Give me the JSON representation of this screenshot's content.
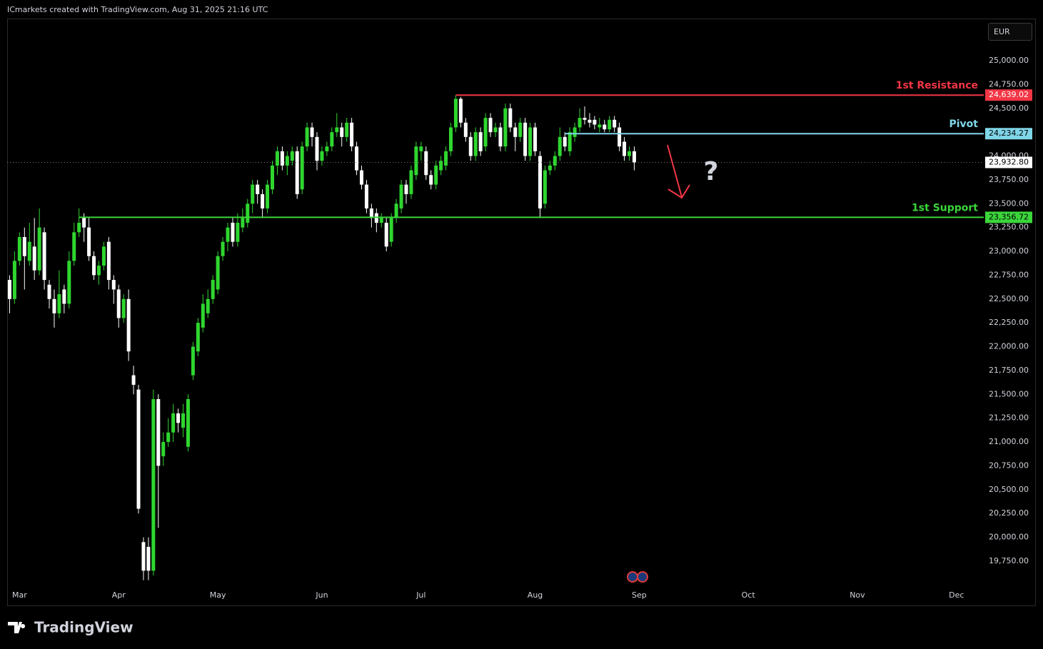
{
  "header": {
    "text": "ICmarkets created with TradingView.com, Aug 31, 2025 21:16 UTC"
  },
  "chart_data": {
    "type": "candlestick",
    "currency": "EUR",
    "up_color": "#2fd62f",
    "down_color": "#ffffff",
    "open": [
      22700,
      22500,
      22900,
      23150,
      22900,
      23050,
      22800,
      23200,
      22650,
      22500,
      22350,
      22600,
      22450,
      22900,
      23200,
      23350,
      23250,
      22950,
      22750,
      22850,
      23100,
      22700,
      22600,
      22300,
      22500,
      21700,
      21550,
      19950,
      19900,
      19650,
      21450,
      20850,
      21000,
      21100,
      21300,
      21150,
      20950,
      21700,
      21950,
      22200,
      22350,
      22500,
      22600,
      22950,
      23100,
      23300,
      23100,
      23250,
      23300,
      23500,
      23700,
      23600,
      23450,
      23650,
      23900,
      24050,
      23900,
      23950,
      24050,
      23650,
      24100,
      24300,
      24200,
      23950,
      24050,
      24100,
      24250,
      24300,
      24200,
      24350,
      24100,
      23850,
      23700,
      23450,
      23400,
      23300,
      23300,
      23100,
      23350,
      23450,
      23700,
      23600,
      23800,
      24050,
      24050,
      23800,
      23700,
      23850,
      23900,
      24050,
      24300,
      24600,
      24350,
      24200,
      24000,
      24250,
      24100,
      24400,
      24250,
      24300,
      24100,
      24500,
      24300,
      24200,
      24350,
      24000,
      24300,
      24000,
      23500,
      23850,
      23900,
      24000,
      24200,
      24050,
      24200,
      24300,
      24400,
      24380,
      24380,
      24300,
      24330,
      24280,
      24380,
      24300,
      24150,
      24000,
      24050
    ],
    "high": [
      22750,
      23000,
      23200,
      23250,
      23300,
      23350,
      23450,
      23250,
      22700,
      22600,
      22800,
      22650,
      23000,
      23300,
      23450,
      23400,
      23350,
      23000,
      22900,
      23100,
      23150,
      22750,
      22650,
      22550,
      22600,
      21800,
      21600,
      20000,
      20000,
      21550,
      21500,
      21100,
      21250,
      21400,
      21350,
      21400,
      21500,
      22050,
      22300,
      22550,
      22600,
      22750,
      23000,
      23150,
      23300,
      23350,
      23400,
      23450,
      23550,
      23750,
      23750,
      23650,
      23750,
      23950,
      24100,
      24100,
      24050,
      24100,
      24100,
      24150,
      24350,
      24350,
      24250,
      24100,
      24150,
      24300,
      24450,
      24350,
      24400,
      24400,
      24150,
      23900,
      23750,
      23500,
      23450,
      23400,
      23350,
      23400,
      23550,
      23750,
      23750,
      23900,
      24150,
      24150,
      24100,
      23850,
      23950,
      24000,
      24100,
      24350,
      24640,
      24620,
      24400,
      24250,
      24300,
      24300,
      24450,
      24450,
      24350,
      24350,
      24550,
      24550,
      24350,
      24400,
      24400,
      24350,
      24350,
      24050,
      23900,
      23950,
      24050,
      24300,
      24250,
      24300,
      24350,
      24500,
      24520,
      24450,
      24420,
      24400,
      24380,
      24420,
      24420,
      24350,
      24200,
      24100,
      24100
    ],
    "low": [
      22350,
      22450,
      22850,
      22600,
      22850,
      22700,
      22750,
      22600,
      22400,
      22200,
      22300,
      22350,
      22400,
      22850,
      23150,
      23100,
      22900,
      22700,
      22650,
      22800,
      22600,
      22450,
      22200,
      22250,
      21850,
      21500,
      20250,
      19550,
      19550,
      19600,
      20100,
      20750,
      20950,
      21000,
      21100,
      21050,
      20900,
      21650,
      21900,
      22150,
      22300,
      22450,
      22550,
      22900,
      23000,
      23050,
      23050,
      23200,
      23250,
      23400,
      23500,
      23350,
      23400,
      23600,
      23800,
      23850,
      23800,
      23900,
      23550,
      23600,
      24050,
      24100,
      23850,
      23900,
      24000,
      24050,
      24200,
      24100,
      24150,
      24050,
      23800,
      23650,
      23400,
      23250,
      23200,
      23250,
      23000,
      23050,
      23300,
      23400,
      23500,
      23550,
      23750,
      23950,
      23750,
      23650,
      23650,
      23800,
      23850,
      24000,
      24250,
      24300,
      24150,
      23950,
      23950,
      24000,
      24050,
      24200,
      24200,
      24050,
      24050,
      24250,
      24050,
      24150,
      23950,
      23950,
      24000,
      23350,
      23450,
      23800,
      23850,
      23950,
      24050,
      24000,
      24150,
      24250,
      24330,
      24300,
      24280,
      24250,
      24250,
      24250,
      24250,
      24050,
      23950,
      23950,
      23850
    ],
    "close": [
      22500,
      22900,
      23150,
      22950,
      23100,
      22800,
      23250,
      22700,
      22500,
      22350,
      22550,
      22450,
      22900,
      23200,
      23300,
      23250,
      22950,
      22750,
      22850,
      23050,
      22700,
      22600,
      22300,
      22500,
      21950,
      21600,
      20300,
      19650,
      19650,
      21450,
      20750,
      21000,
      21100,
      21300,
      21200,
      21300,
      21450,
      22000,
      22250,
      22450,
      22500,
      22700,
      22950,
      23100,
      23250,
      23100,
      23300,
      23350,
      23500,
      23700,
      23600,
      23450,
      23700,
      23900,
      24050,
      23900,
      24000,
      24050,
      23600,
      24100,
      24300,
      24200,
      23950,
      24050,
      24100,
      24250,
      24300,
      24200,
      24350,
      24100,
      23850,
      23700,
      23450,
      23350,
      23300,
      23350,
      23050,
      23350,
      23500,
      23700,
      23600,
      23850,
      24100,
      24100,
      23800,
      23700,
      23900,
      23950,
      24050,
      24300,
      24600,
      24350,
      24200,
      24000,
      24250,
      24050,
      24400,
      24250,
      24300,
      24100,
      24500,
      24300,
      24200,
      24350,
      24000,
      24300,
      24050,
      23450,
      23850,
      23900,
      24000,
      24200,
      24100,
      24250,
      24300,
      24400,
      24380,
      24350,
      24330,
      24330,
      24280,
      24380,
      24300,
      24100,
      24000,
      24050,
      23932.8
    ],
    "last_label": "23,932.80",
    "xlim": [
      -0.5,
      196.5
    ],
    "xticks": [
      {
        "value": 2,
        "label": "Mar"
      },
      {
        "value": 22,
        "label": "Apr"
      },
      {
        "value": 42,
        "label": "May"
      },
      {
        "value": 63,
        "label": "Jun"
      },
      {
        "value": 83,
        "label": "Jul"
      },
      {
        "value": 106,
        "label": "Aug"
      },
      {
        "value": 127,
        "label": "Sep"
      },
      {
        "value": 149,
        "label": "Oct"
      },
      {
        "value": 171,
        "label": "Nov"
      },
      {
        "value": 191,
        "label": "Dec"
      }
    ],
    "ylim": [
      19480,
      25442
    ],
    "yticks": [
      {
        "value": 19750,
        "label": "19,750.00"
      },
      {
        "value": 20000,
        "label": "20,000.00"
      },
      {
        "value": 20250,
        "label": "20,250.00"
      },
      {
        "value": 20500,
        "label": "20,500.00"
      },
      {
        "value": 20750,
        "label": "20,750.00"
      },
      {
        "value": 21000,
        "label": "21,000.00"
      },
      {
        "value": 21250,
        "label": "21,250.00"
      },
      {
        "value": 21500,
        "label": "21,500.00"
      },
      {
        "value": 21750,
        "label": "21,750.00"
      },
      {
        "value": 22000,
        "label": "22,000.00"
      },
      {
        "value": 22250,
        "label": "22,250.00"
      },
      {
        "value": 22500,
        "label": "22,500.00"
      },
      {
        "value": 22750,
        "label": "22,750.00"
      },
      {
        "value": 23000,
        "label": "23,000.00"
      },
      {
        "value": 23250,
        "label": "23,250.00"
      },
      {
        "value": 23500,
        "label": "23,500.00"
      },
      {
        "value": 23750,
        "label": "23,750.00"
      },
      {
        "value": 24000,
        "label": "24,000.00"
      },
      {
        "value": 24250,
        "label": "24,250.00"
      },
      {
        "value": 24500,
        "label": "24,500.00"
      },
      {
        "value": 24750,
        "label": "24,750.00"
      },
      {
        "value": 25000,
        "label": "25,000.00"
      }
    ],
    "levels": [
      {
        "name": "1st Resistance",
        "value": 24639.02,
        "label": "24,639.02",
        "color": "#f23645",
        "text_color": "#ffffff",
        "from": 90
      },
      {
        "name": "Pivot",
        "value": 24234.27,
        "label": "24,234.27",
        "color": "#7fd6e8",
        "text_color": "#000000",
        "from": 112
      },
      {
        "name": "1st Support",
        "value": 23356.72,
        "label": "23,356.72",
        "color": "#3bd63b",
        "text_color": "#000000",
        "from": 14
      }
    ],
    "annotation": "?"
  },
  "footer": {
    "brand": "TradingView"
  }
}
